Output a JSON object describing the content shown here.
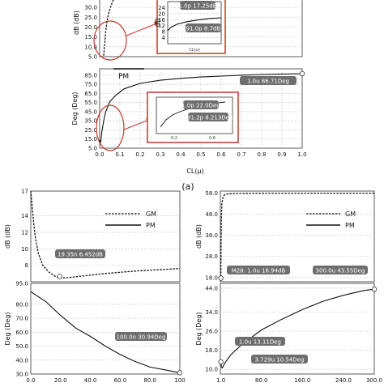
{
  "figure": {
    "caption_a": "(a)",
    "x_label_a": "CL(μ)"
  },
  "chart_data": [
    {
      "id": "a-gm",
      "type": "line",
      "xlabel": "",
      "ylabel": "dB (dB)",
      "xlim": [
        0,
        1
      ],
      "ylim": [
        5,
        39.5
      ],
      "yticks": [
        5.0,
        10.0,
        15.0,
        20.0,
        25.0,
        30.0,
        35.0
      ],
      "series": [
        {
          "name": "GM",
          "style": "dashed",
          "x": [
            0.02,
            0.025,
            0.03,
            0.035,
            0.04,
            0.05,
            0.06,
            0.07,
            0.08,
            0.09,
            0.1,
            0.12
          ],
          "y": [
            5.5,
            12,
            18,
            22,
            25,
            29,
            32,
            34.5,
            36.5,
            38,
            39,
            40
          ]
        }
      ]
    },
    {
      "id": "a-gm-inset",
      "type": "line",
      "xlabel": "CL(u)",
      "ylabel": "dB",
      "ylim": [
        0,
        28
      ],
      "yticks": [
        4,
        8,
        12,
        16,
        20,
        24
      ],
      "series": [
        {
          "name": "",
          "x": [
            91,
            150,
            250,
            400,
            600,
            800,
            1000
          ],
          "y": [
            8.7,
            11,
            13,
            14.5,
            15.8,
            16.8,
            17.25
          ]
        }
      ],
      "annotations": [
        "1.0p 17.25dB",
        "91.0p 8.7dB"
      ]
    },
    {
      "id": "a-pm",
      "type": "line",
      "xlabel": "CL(μ)",
      "ylabel": "Deg (Deg)",
      "xlim": [
        0,
        1
      ],
      "ylim": [
        5,
        92
      ],
      "xticks": [
        0.0,
        0.1,
        0.2,
        0.3,
        0.4,
        0.5,
        0.6,
        0.7,
        0.8,
        0.9,
        1.0
      ],
      "yticks": [
        5.0,
        15.0,
        25.0,
        35.0,
        45.0,
        55.0,
        65.0,
        75.0,
        85.0
      ],
      "legend": "PM",
      "series": [
        {
          "name": "PM",
          "x": [
            0.0,
            0.005,
            0.01,
            0.02,
            0.03,
            0.05,
            0.08,
            0.12,
            0.2,
            0.3,
            0.4,
            0.5,
            0.6,
            0.7,
            0.8,
            0.9,
            1.0
          ],
          "y": [
            14,
            11,
            22,
            35,
            45,
            56,
            63,
            70,
            76,
            79.5,
            81.5,
            83,
            84,
            85,
            85.8,
            86.3,
            86.71
          ]
        }
      ],
      "annotations": [
        "1.0u 86.71Deg"
      ]
    },
    {
      "id": "a-pm-inset",
      "type": "line",
      "xlabel": "CL(u)",
      "ylabel": "Deg",
      "xticks": [
        0.2,
        0.6
      ],
      "series": [
        {
          "name": "",
          "x": [
            281.2,
            400,
            500,
            600,
            700,
            800,
            900,
            1000
          ],
          "y": [
            8.2,
            13,
            16,
            18,
            19.5,
            20.5,
            21.4,
            22
          ]
        }
      ],
      "annotations": [
        "1.0p 22.0Deg",
        "281.2p 8.213Deg"
      ]
    },
    {
      "id": "b-gm",
      "type": "line",
      "xlabel": "",
      "ylabel": "dB (dB)",
      "xlim": [
        0,
        100
      ],
      "ylim": [
        6,
        17
      ],
      "yticks": [
        8.0,
        10,
        12,
        14,
        17
      ],
      "legend": "top-right",
      "series": [
        {
          "name": "GM",
          "style": "dashed",
          "x": [
            0,
            1,
            2,
            3,
            5,
            8,
            12,
            16,
            19.35,
            25,
            35,
            50,
            70,
            100
          ],
          "y": [
            17,
            15,
            13,
            11.5,
            9.5,
            8.0,
            7.2,
            6.7,
            6.452,
            6.5,
            6.7,
            7.0,
            7.3,
            7.6
          ]
        }
      ],
      "annotations": [
        "19.35n 6.452dB"
      ]
    },
    {
      "id": "b-pm",
      "type": "line",
      "xlabel": "",
      "ylabel": "Deg (Deg)",
      "xlim": [
        0,
        100
      ],
      "ylim": [
        30,
        95
      ],
      "xticks": [
        0.0,
        20.0,
        40.0,
        60.0,
        80.0,
        100
      ],
      "yticks": [
        30.0,
        40.0,
        50.0,
        60.0,
        70.0,
        80.0,
        95.0
      ],
      "series": [
        {
          "name": "PM",
          "x": [
            0,
            10,
            20,
            30,
            40,
            50,
            60,
            70,
            80,
            90,
            100
          ],
          "y": [
            89,
            82,
            72,
            63,
            57,
            50,
            44,
            39,
            35,
            33,
            30.94
          ]
        }
      ],
      "annotations": [
        "100.0n 30.94Deg"
      ]
    },
    {
      "id": "c-gm",
      "type": "line",
      "xlabel": "",
      "ylabel": "dB (dB)",
      "xlim": [
        0,
        300
      ],
      "ylim": [
        16,
        59
      ],
      "yticks": [
        18.0,
        28.0,
        38.0,
        48.0,
        58.0
      ],
      "legend": "top-right",
      "series": [
        {
          "name": "GM",
          "style": "dashed",
          "x": [
            1.0,
            1.5,
            2,
            3,
            5,
            8,
            15,
            30,
            100,
            300
          ],
          "y": [
            16.94,
            35,
            47,
            53,
            56,
            57.2,
            57.7,
            57.9,
            58,
            58
          ]
        }
      ],
      "annotations": [
        "M28: 1.0u 16.94dB",
        "300.0u 43.55Deg"
      ]
    },
    {
      "id": "c-pm",
      "type": "line",
      "xlabel": "",
      "ylabel": "Deg (Deg)",
      "xlim": [
        0,
        300
      ],
      "ylim": [
        8,
        46
      ],
      "xticks": [
        1.0,
        80.0,
        160.0,
        240.0,
        300.0
      ],
      "yticks": [
        10.0,
        18.0,
        26.0,
        34.0,
        44.0
      ],
      "series": [
        {
          "name": "PM",
          "x": [
            0.5,
            1.0,
            2,
            3.729,
            6,
            10,
            20,
            40,
            80,
            120,
            160,
            200,
            240,
            280,
            300
          ],
          "y": [
            12,
            13.11,
            11,
            10.54,
            11.5,
            13,
            16,
            20,
            26.5,
            31,
            35,
            38.5,
            41,
            43,
            43.55
          ]
        }
      ],
      "annotations": [
        "1.0u 13.11Deg",
        "3.729u 10.54Deg"
      ]
    }
  ],
  "labels": {
    "a_gm_legend": "GM",
    "a_pm_legend": "PM",
    "b_gm_legend_gm": "GM",
    "b_gm_legend_pm": "PM",
    "c_gm_legend_gm": "GM",
    "c_gm_legend_pm": "PM"
  },
  "colors": {
    "callout_bg": "#6e6e6e",
    "highlight": "#c0392b",
    "line": "#111111"
  }
}
